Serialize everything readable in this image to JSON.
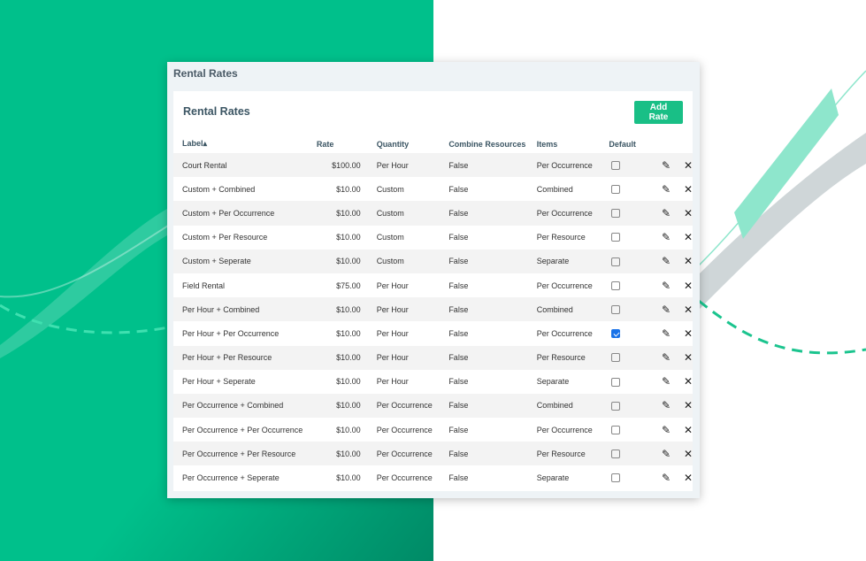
{
  "colors": {
    "brand_green": "#00c08b",
    "button_green": "#19bf86",
    "checkbox_blue": "#1a73e8"
  },
  "card": {
    "title": "Rental Rates"
  },
  "panel": {
    "title": "Rental Rates",
    "add_button": "Add Rate"
  },
  "table": {
    "headers": {
      "label": "Label▴",
      "rate": "Rate",
      "quantity": "Quantity",
      "combine": "Combine Resources",
      "items": "Items",
      "default": "Default"
    },
    "rows": [
      {
        "label": "Court Rental",
        "rate": "$100.00",
        "quantity": "Per Hour",
        "combine": "False",
        "items": "Per Occurrence",
        "default": false
      },
      {
        "label": "Custom + Combined",
        "rate": "$10.00",
        "quantity": "Custom",
        "combine": "False",
        "items": "Combined",
        "default": false
      },
      {
        "label": "Custom + Per Occurrence",
        "rate": "$10.00",
        "quantity": "Custom",
        "combine": "False",
        "items": "Per Occurrence",
        "default": false
      },
      {
        "label": "Custom + Per Resource",
        "rate": "$10.00",
        "quantity": "Custom",
        "combine": "False",
        "items": "Per Resource",
        "default": false
      },
      {
        "label": "Custom + Seperate",
        "rate": "$10.00",
        "quantity": "Custom",
        "combine": "False",
        "items": "Separate",
        "default": false
      },
      {
        "label": "Field Rental",
        "rate": "$75.00",
        "quantity": "Per Hour",
        "combine": "False",
        "items": "Per Occurrence",
        "default": false
      },
      {
        "label": "Per Hour + Combined",
        "rate": "$10.00",
        "quantity": "Per Hour",
        "combine": "False",
        "items": "Combined",
        "default": false
      },
      {
        "label": "Per Hour + Per Occurrence",
        "rate": "$10.00",
        "quantity": "Per Hour",
        "combine": "False",
        "items": "Per Occurrence",
        "default": true
      },
      {
        "label": "Per Hour + Per Resource",
        "rate": "$10.00",
        "quantity": "Per Hour",
        "combine": "False",
        "items": "Per Resource",
        "default": false
      },
      {
        "label": "Per Hour + Seperate",
        "rate": "$10.00",
        "quantity": "Per Hour",
        "combine": "False",
        "items": "Separate",
        "default": false
      },
      {
        "label": "Per Occurrence + Combined",
        "rate": "$10.00",
        "quantity": "Per Occurrence",
        "combine": "False",
        "items": "Combined",
        "default": false
      },
      {
        "label": "Per Occurrence + Per Occurrence",
        "rate": "$10.00",
        "quantity": "Per Occurrence",
        "combine": "False",
        "items": "Per Occurrence",
        "default": false
      },
      {
        "label": "Per Occurrence + Per Resource",
        "rate": "$10.00",
        "quantity": "Per Occurrence",
        "combine": "False",
        "items": "Per Resource",
        "default": false
      },
      {
        "label": "Per Occurrence + Seperate",
        "rate": "$10.00",
        "quantity": "Per Occurrence",
        "combine": "False",
        "items": "Separate",
        "default": false
      }
    ]
  }
}
